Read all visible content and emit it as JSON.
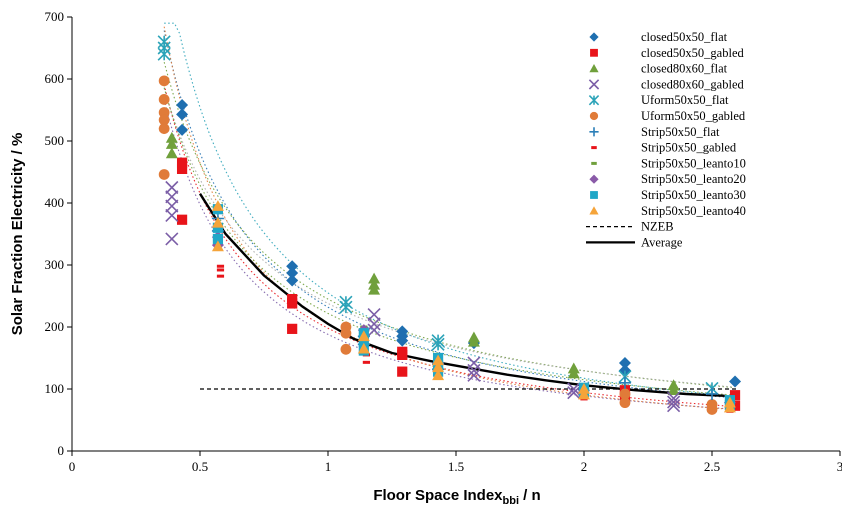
{
  "chart_data": {
    "type": "scatter",
    "title": "",
    "xlabel": {
      "main": "Floor Space Index",
      "sub": "bbi",
      "tail": " / n"
    },
    "ylabel": "Solar Fraction Electricity / %",
    "xlim": [
      0,
      3
    ],
    "ylim": [
      0,
      700
    ],
    "x_ticks": [
      "0",
      "0.5",
      "1",
      "1.5",
      "2",
      "2.5",
      "3"
    ],
    "y_ticks": [
      "0",
      "100",
      "200",
      "300",
      "400",
      "500",
      "600",
      "700"
    ],
    "grid": false,
    "legend_position": "top-right",
    "series": [
      {
        "name": "closed50x50_flat",
        "marker": "diamond",
        "color": "#1f6fb0",
        "points": [
          [
            0.43,
            558
          ],
          [
            0.43,
            543
          ],
          [
            0.43,
            518
          ],
          [
            0.86,
            298
          ],
          [
            0.86,
            287
          ],
          [
            0.86,
            275
          ],
          [
            1.29,
            193
          ],
          [
            1.29,
            185
          ],
          [
            1.29,
            178
          ],
          [
            1.57,
            174
          ],
          [
            2.16,
            142
          ],
          [
            2.16,
            130
          ],
          [
            2.59,
            112
          ]
        ]
      },
      {
        "name": "closed50x50_gabled",
        "marker": "square",
        "color": "#e8141a",
        "points": [
          [
            0.43,
            465
          ],
          [
            0.43,
            455
          ],
          [
            0.43,
            373
          ],
          [
            0.86,
            245
          ],
          [
            0.86,
            238
          ],
          [
            0.86,
            197
          ],
          [
            1.29,
            160
          ],
          [
            1.29,
            155
          ],
          [
            1.29,
            128
          ],
          [
            2.16,
            98
          ],
          [
            2.16,
            90
          ],
          [
            2.59,
            90
          ],
          [
            2.59,
            73
          ]
        ]
      },
      {
        "name": "closed80x60_flat",
        "marker": "triangle",
        "color": "#70a03c",
        "points": [
          [
            0.39,
            505
          ],
          [
            0.39,
            495
          ],
          [
            0.39,
            480
          ],
          [
            1.18,
            278
          ],
          [
            1.18,
            268
          ],
          [
            1.18,
            260
          ],
          [
            1.57,
            183
          ],
          [
            1.57,
            176
          ],
          [
            1.96,
            133
          ],
          [
            1.96,
            125
          ],
          [
            2.35,
            106
          ],
          [
            2.35,
            98
          ]
        ]
      },
      {
        "name": "closed80x60_gabled",
        "marker": "x",
        "color": "#7b5ea7",
        "points": [
          [
            0.39,
            425
          ],
          [
            0.39,
            410
          ],
          [
            0.39,
            395
          ],
          [
            0.39,
            380
          ],
          [
            0.39,
            342
          ],
          [
            1.18,
            220
          ],
          [
            1.18,
            205
          ],
          [
            1.18,
            195
          ],
          [
            1.57,
            142
          ],
          [
            1.57,
            130
          ],
          [
            1.57,
            122
          ],
          [
            1.96,
            100
          ],
          [
            1.96,
            94
          ],
          [
            2.35,
            85
          ],
          [
            2.35,
            79
          ],
          [
            2.35,
            73
          ]
        ]
      },
      {
        "name": "Uform50x50_flat",
        "marker": "asterisk",
        "color": "#2ba3b8",
        "points": [
          [
            0.36,
            660
          ],
          [
            0.36,
            650
          ],
          [
            0.36,
            640
          ],
          [
            1.07,
            240
          ],
          [
            1.07,
            232
          ],
          [
            1.43,
            178
          ],
          [
            1.43,
            172
          ],
          [
            2.16,
            120
          ],
          [
            2.5,
            101
          ]
        ]
      },
      {
        "name": "Uform50x50_gabled",
        "marker": "circle",
        "color": "#e07b39",
        "points": [
          [
            0.36,
            597
          ],
          [
            0.36,
            567
          ],
          [
            0.36,
            546
          ],
          [
            0.36,
            534
          ],
          [
            0.36,
            520
          ],
          [
            0.36,
            446
          ],
          [
            1.07,
            200
          ],
          [
            1.07,
            190
          ],
          [
            1.07,
            164
          ],
          [
            2.16,
            92
          ],
          [
            2.16,
            78
          ],
          [
            2.5,
            75
          ],
          [
            2.5,
            67
          ]
        ]
      },
      {
        "name": "Strip50x50_flat",
        "marker": "plus",
        "color": "#2b7fb8",
        "points": [
          [
            0.57,
            375
          ],
          [
            0.57,
            355
          ],
          [
            1.14,
            185
          ],
          [
            1.14,
            172
          ],
          [
            1.43,
            140
          ],
          [
            1.43,
            132
          ],
          [
            2.16,
            110
          ],
          [
            2.5,
            92
          ]
        ]
      },
      {
        "name": "Strip50x50_gabled",
        "marker": "dash",
        "color": "#e8141a",
        "points": [
          [
            0.58,
            298
          ],
          [
            0.58,
            292
          ],
          [
            0.58,
            282
          ],
          [
            1.15,
            155
          ],
          [
            1.15,
            143
          ],
          [
            1.43,
            122
          ],
          [
            2.0,
            88
          ],
          [
            2.0,
            84
          ],
          [
            2.57,
            72
          ],
          [
            2.57,
            64
          ]
        ]
      },
      {
        "name": "Strip50x50_leanto10",
        "marker": "dash",
        "color": "#70a03c",
        "points": [
          [
            0.57,
            385
          ],
          [
            1.14,
            200
          ],
          [
            1.43,
            150
          ],
          [
            2.0,
            105
          ],
          [
            2.57,
            82
          ]
        ]
      },
      {
        "name": "Strip50x50_leanto20",
        "marker": "diamond",
        "color": "#8a5aa8",
        "points": [
          [
            0.57,
            345
          ],
          [
            0.57,
            332
          ],
          [
            1.14,
            195
          ],
          [
            1.43,
            142
          ],
          [
            2.0,
            98
          ],
          [
            2.57,
            78
          ]
        ]
      },
      {
        "name": "Strip50x50_leanto30",
        "marker": "square",
        "color": "#20a7c7",
        "points": [
          [
            0.57,
            390
          ],
          [
            0.57,
            360
          ],
          [
            0.57,
            342
          ],
          [
            1.14,
            190
          ],
          [
            1.14,
            176
          ],
          [
            1.14,
            162
          ],
          [
            1.43,
            150
          ],
          [
            1.43,
            138
          ],
          [
            1.43,
            128
          ],
          [
            2.0,
            102
          ],
          [
            2.0,
            95
          ],
          [
            2.57,
            82
          ],
          [
            2.57,
            74
          ]
        ]
      },
      {
        "name": "Strip50x50_leanto40",
        "marker": "triangle",
        "color": "#f5a43a",
        "points": [
          [
            0.57,
            395
          ],
          [
            0.57,
            368
          ],
          [
            0.57,
            330
          ],
          [
            1.14,
            185
          ],
          [
            1.14,
            165
          ],
          [
            1.43,
            146
          ],
          [
            1.43,
            135
          ],
          [
            1.43,
            122
          ],
          [
            2.0,
            100
          ],
          [
            2.0,
            91
          ],
          [
            2.57,
            78
          ],
          [
            2.57,
            70
          ]
        ]
      }
    ],
    "reference_lines": [
      {
        "name": "NZEB",
        "style": "dashed",
        "color": "#000000",
        "points": [
          [
            0.5,
            100
          ],
          [
            2.6,
            100
          ]
        ]
      },
      {
        "name": "Average",
        "style": "solid",
        "color": "#000000",
        "points": [
          [
            0.5,
            415
          ],
          [
            0.6,
            350
          ],
          [
            0.75,
            283
          ],
          [
            0.9,
            233
          ],
          [
            1.0,
            205
          ],
          [
            1.1,
            181
          ],
          [
            1.25,
            158
          ],
          [
            1.4,
            145
          ],
          [
            1.55,
            134
          ],
          [
            1.7,
            123
          ],
          [
            1.85,
            114
          ],
          [
            2.0,
            106
          ],
          [
            2.2,
            98
          ],
          [
            2.4,
            92
          ],
          [
            2.55,
            89
          ]
        ]
      }
    ],
    "trendlines": [
      {
        "color": "#1f6fb0",
        "a": 232,
        "b": -1.05
      },
      {
        "color": "#e8141a",
        "a": 198,
        "b": -1.07
      },
      {
        "color": "#70a03c",
        "a": 245,
        "b": -0.92
      },
      {
        "color": "#7b5ea7",
        "a": 188,
        "b": -1.08
      },
      {
        "color": "#2ba3b8",
        "a": 255,
        "b": -1.12
      },
      {
        "color": "#e07b39",
        "a": 205,
        "b": -1.18
      },
      {
        "color": "#aaaaaa",
        "a": 238,
        "b": -0.88
      },
      {
        "color": "#70a03c",
        "a": 222,
        "b": -0.95
      }
    ]
  }
}
